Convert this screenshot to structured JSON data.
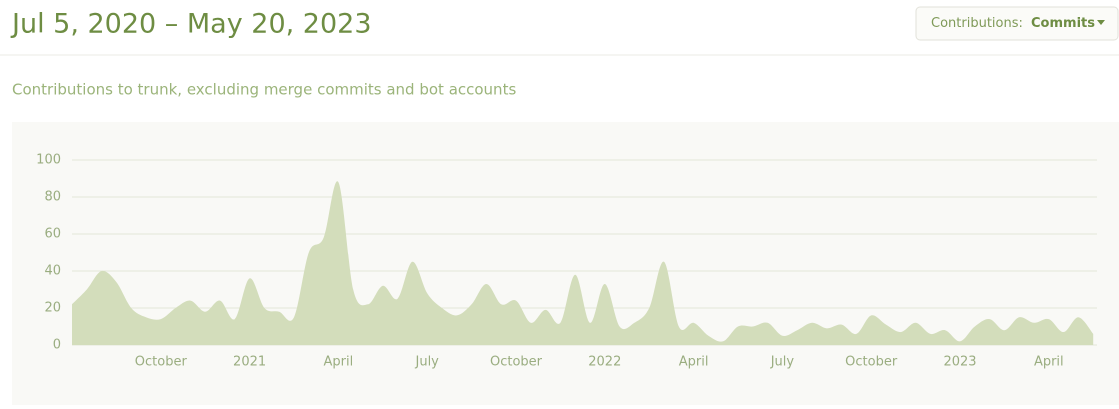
{
  "header": {
    "title": "Jul 5, 2020 – May 20, 2023",
    "button_label": "Contributions:",
    "button_value": "Commits"
  },
  "chart_data": {
    "type": "area",
    "subtitle": "Contributions to trunk, excluding merge commits and bot accounts",
    "categories": [
      null,
      null,
      null,
      null,
      null,
      null,
      "October",
      null,
      null,
      null,
      null,
      null,
      "2021",
      null,
      null,
      null,
      null,
      null,
      "April",
      null,
      null,
      null,
      null,
      null,
      "July",
      null,
      null,
      null,
      null,
      null,
      "October",
      null,
      null,
      null,
      null,
      null,
      "2022",
      null,
      null,
      null,
      null,
      null,
      "April",
      null,
      null,
      null,
      null,
      null,
      "July",
      null,
      null,
      null,
      null,
      null,
      "October",
      null,
      null,
      null,
      null,
      null,
      "2023",
      null,
      null,
      null,
      null,
      null,
      "April",
      null,
      null,
      null
    ],
    "values": [
      22,
      30,
      40,
      34,
      20,
      15,
      14,
      20,
      24,
      18,
      24,
      14,
      36,
      20,
      18,
      15,
      50,
      58,
      88,
      30,
      22,
      32,
      25,
      45,
      28,
      20,
      16,
      22,
      33,
      22,
      24,
      12,
      19,
      12,
      38,
      12,
      33,
      10,
      12,
      20,
      45,
      10,
      12,
      5,
      2,
      10,
      10,
      12,
      5,
      8,
      12,
      9,
      11,
      6,
      16,
      11,
      7,
      12,
      6,
      8,
      2,
      10,
      14,
      8,
      15,
      12,
      14,
      7,
      15,
      6
    ],
    "color": "#d3ddbb",
    "ylim": [
      0,
      100
    ],
    "yticks": [
      0,
      20,
      40,
      60,
      80,
      100
    ],
    "grid": true
  }
}
